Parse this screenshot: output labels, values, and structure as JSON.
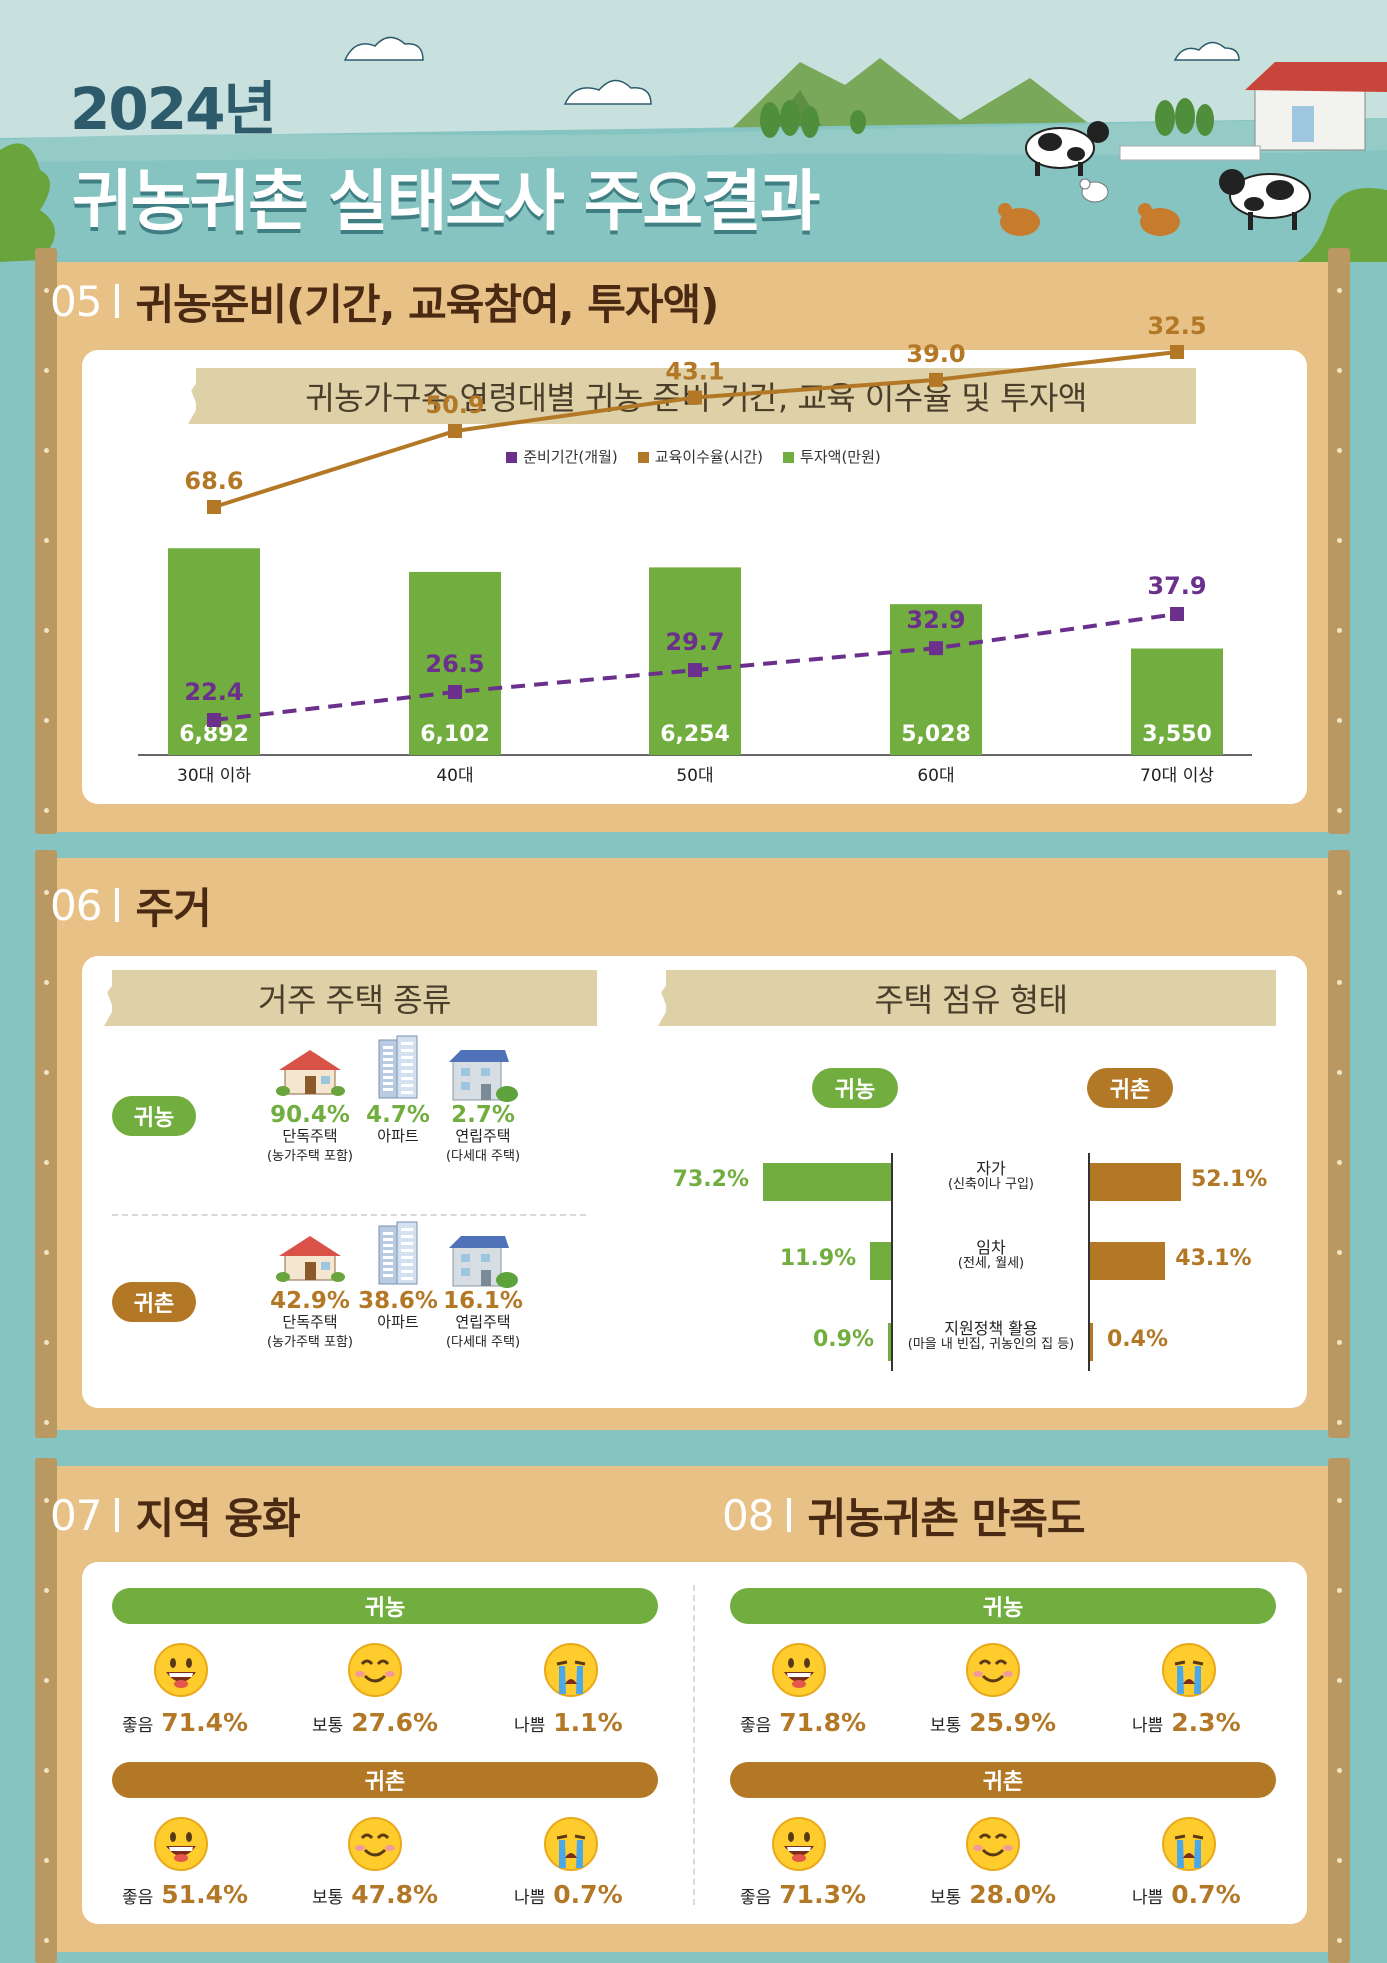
{
  "hero": {
    "year": "2024년",
    "title": "귀농귀촌 실태조사 주요결과"
  },
  "colors": {
    "green": "#72ae3f",
    "brown": "#b37826",
    "purple": "#6b2f8c",
    "frame": "#e8c187",
    "teal": "#86c4c2"
  },
  "sec05": {
    "num": "05",
    "title": "귀농준비(기간, 교육참여, 투자액)",
    "banner": "귀농가구주 연령대별 귀농 준비 기간, 교육 이수율 및 투자액"
  },
  "chart_data": {
    "type": "bar",
    "title": "귀농가구주 연령대별 귀농 준비 기간, 교육 이수율 및 투자액",
    "categories": [
      "30대 이하",
      "40대",
      "50대",
      "60대",
      "70대 이상"
    ],
    "series": [
      {
        "name": "준비기간(개월)",
        "kind": "line",
        "style": "dashed",
        "color": "#6b2f8c",
        "values": [
          22.4,
          26.5,
          29.7,
          32.9,
          37.9
        ]
      },
      {
        "name": "교육이수율(시간)",
        "kind": "line",
        "style": "solid",
        "color": "#b37826",
        "values": [
          68.6,
          50.9,
          43.1,
          39.0,
          32.5
        ]
      },
      {
        "name": "투자액(만원)",
        "kind": "bar",
        "color": "#72ae3f",
        "values": [
          6892,
          6102,
          6254,
          5028,
          3550
        ],
        "labels": [
          "6,892",
          "6,102",
          "6,254",
          "5,028",
          "3,550"
        ]
      }
    ],
    "legend_position": "top-center",
    "grid": false
  },
  "sec06": {
    "num": "06",
    "title": "주거",
    "housing": {
      "banner": "거주 주택 종류",
      "groups": [
        {
          "label": "귀농",
          "items": [
            {
              "pct": "90.4%",
              "label": "단독주택",
              "sub": "(농가주택 포함)",
              "icon": "house-icon"
            },
            {
              "pct": "4.7%",
              "label": "아파트",
              "sub": "",
              "icon": "apartment-icon"
            },
            {
              "pct": "2.7%",
              "label": "연립주택",
              "sub": "(다세대 주택)",
              "icon": "townhouse-icon"
            }
          ]
        },
        {
          "label": "귀촌",
          "items": [
            {
              "pct": "42.9%",
              "label": "단독주택",
              "sub": "(농가주택 포함)",
              "icon": "house-icon"
            },
            {
              "pct": "38.6%",
              "label": "아파트",
              "sub": "",
              "icon": "apartment-icon"
            },
            {
              "pct": "16.1%",
              "label": "연립주택",
              "sub": "(다세대 주택)",
              "icon": "townhouse-icon"
            }
          ]
        }
      ]
    },
    "tenure": {
      "banner": "주택 점유 형태",
      "left_label": "귀농",
      "right_label": "귀촌",
      "rows": [
        {
          "label": "자가",
          "sub": "(신축이나 구입)",
          "left": 73.2,
          "left_text": "73.2%",
          "right": 52.1,
          "right_text": "52.1%"
        },
        {
          "label": "임차",
          "sub": "(전세, 월세)",
          "left": 11.9,
          "left_text": "11.9%",
          "right": 43.1,
          "right_text": "43.1%"
        },
        {
          "label": "지원정책 활용",
          "sub": "(마을 내 빈집, 귀농인의 집 등)",
          "left": 0.9,
          "left_text": "0.9%",
          "right": 0.4,
          "right_text": "0.4%"
        }
      ]
    }
  },
  "sec07": {
    "num": "07",
    "title": "지역 융화",
    "groups": [
      {
        "label": "귀농",
        "items": [
          {
            "k": "좋음",
            "v": "71.4%",
            "face": "laugh"
          },
          {
            "k": "보통",
            "v": "27.6%",
            "face": "smile"
          },
          {
            "k": "나쁨",
            "v": "1.1%",
            "face": "cry"
          }
        ]
      },
      {
        "label": "귀촌",
        "items": [
          {
            "k": "좋음",
            "v": "51.4%",
            "face": "laugh"
          },
          {
            "k": "보통",
            "v": "47.8%",
            "face": "smile"
          },
          {
            "k": "나쁨",
            "v": "0.7%",
            "face": "cry"
          }
        ]
      }
    ]
  },
  "sec08": {
    "num": "08",
    "title": "귀농귀촌 만족도",
    "groups": [
      {
        "label": "귀농",
        "items": [
          {
            "k": "좋음",
            "v": "71.8%",
            "face": "laugh"
          },
          {
            "k": "보통",
            "v": "25.9%",
            "face": "smile"
          },
          {
            "k": "나쁨",
            "v": "2.3%",
            "face": "cry"
          }
        ]
      },
      {
        "label": "귀촌",
        "items": [
          {
            "k": "좋음",
            "v": "71.3%",
            "face": "laugh"
          },
          {
            "k": "보통",
            "v": "28.0%",
            "face": "smile"
          },
          {
            "k": "나쁨",
            "v": "0.7%",
            "face": "cry"
          }
        ]
      }
    ]
  }
}
